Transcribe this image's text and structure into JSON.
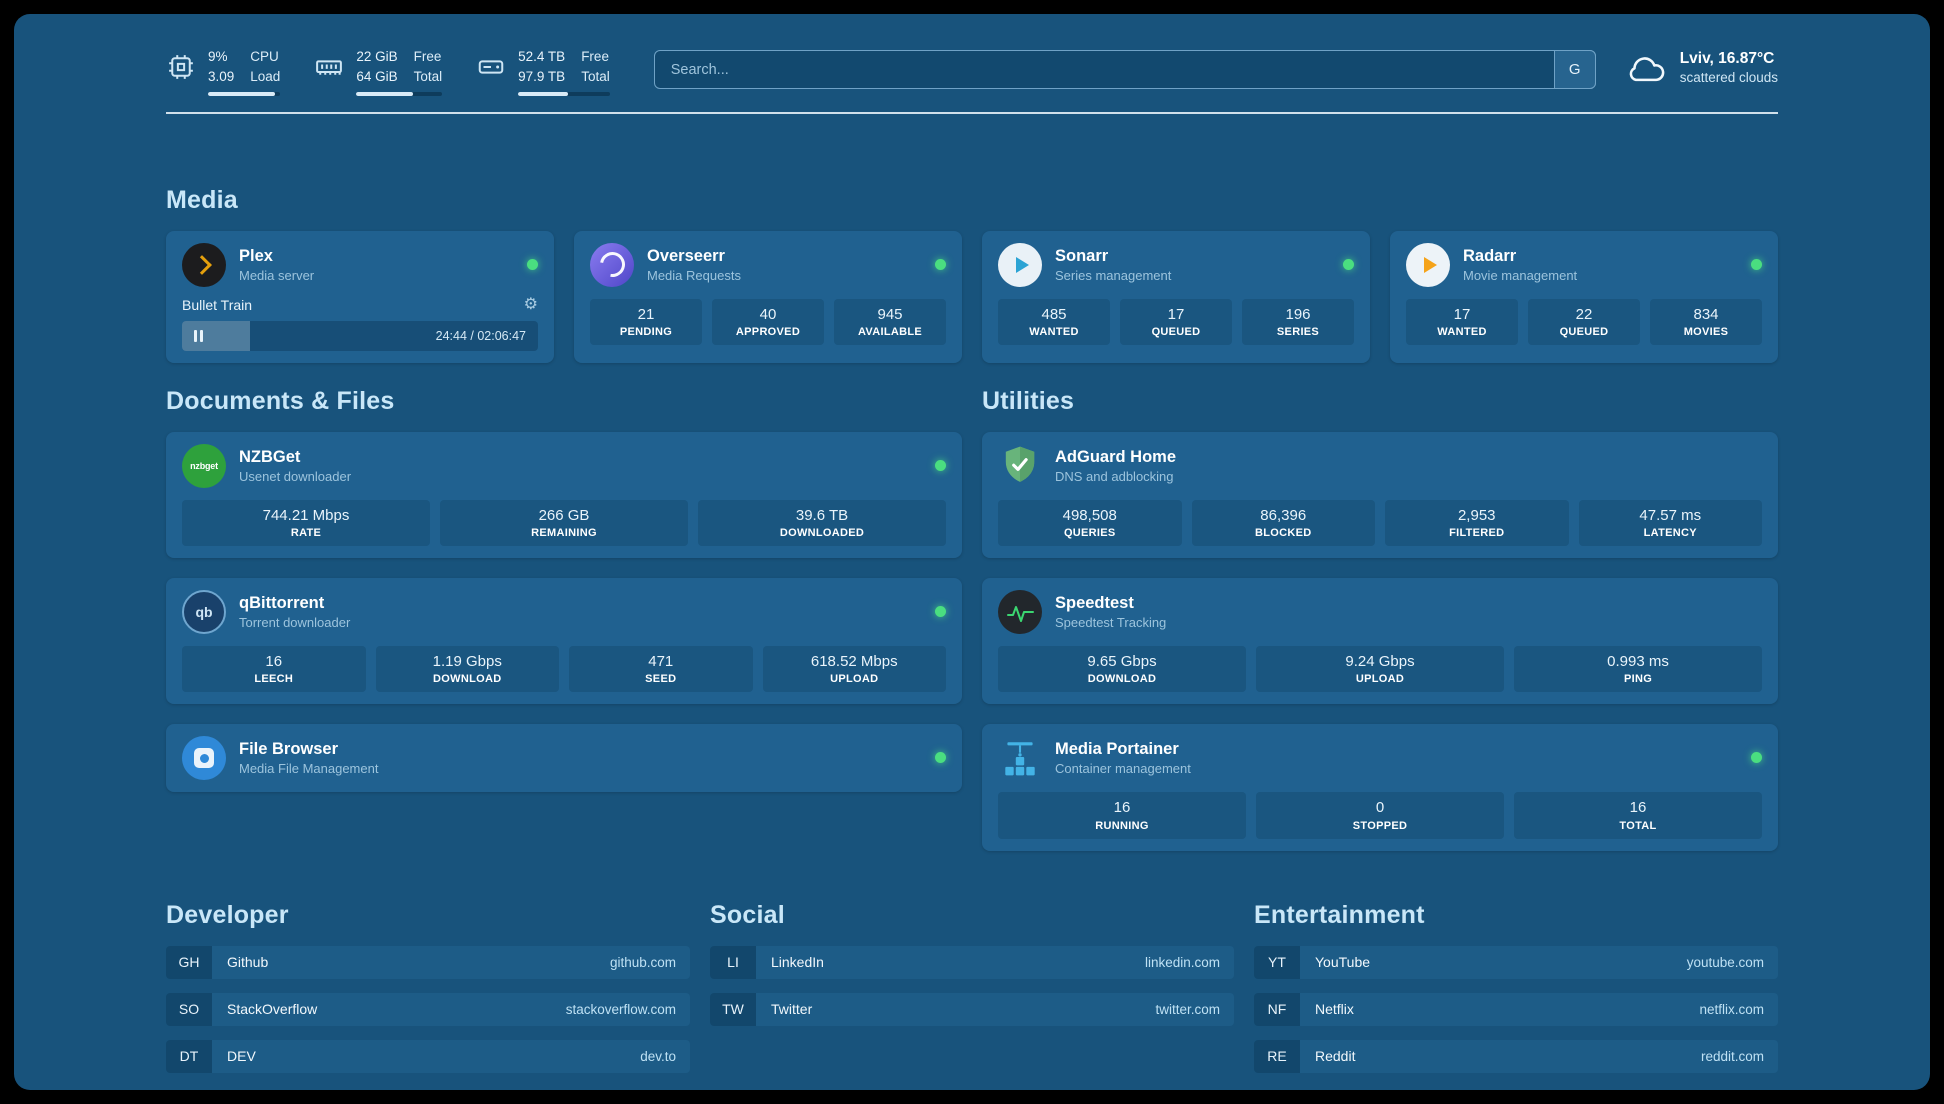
{
  "colors": {
    "panel_background": "#18537c",
    "card_background": "#206190",
    "status_online_green": "#4ade80",
    "heading_blue": "#c9e7f8",
    "plex_amber": "#e5a00d",
    "adguard_green": "#68b47b",
    "speedtest_green": "#3bd671",
    "portainer_blue": "#43b3e6"
  },
  "topbar": {
    "cpu": {
      "value1": "9%",
      "label1": "CPU",
      "value2": "3.09",
      "label2": "Load",
      "fill_percent": 92
    },
    "memory": {
      "value1": "22 GiB",
      "label1": "Free",
      "value2": "64 GiB",
      "label2": "Total",
      "fill_percent": 66
    },
    "disk": {
      "value1": "52.4 TB",
      "label1": "Free",
      "value2": "97.9 TB",
      "label2": "Total",
      "fill_percent": 54
    },
    "search": {
      "placeholder": "Search...",
      "button_label": "G"
    },
    "weather": {
      "location": "Lviv, 16.87°C",
      "condition": "scattered clouds"
    }
  },
  "sections": {
    "media": "Media",
    "documents": "Documents & Files",
    "utilities": "Utilities",
    "developer": "Developer",
    "social": "Social",
    "entertainment": "Entertainment"
  },
  "services": {
    "plex": {
      "name": "Plex",
      "subtitle": "Media server",
      "now_playing": "Bullet Train",
      "time": "24:44 / 02:06:47",
      "progress_percent": 19
    },
    "overseerr": {
      "name": "Overseerr",
      "subtitle": "Media Requests",
      "stats": [
        {
          "value": "21",
          "label": "PENDING"
        },
        {
          "value": "40",
          "label": "APPROVED"
        },
        {
          "value": "945",
          "label": "AVAILABLE"
        }
      ]
    },
    "sonarr": {
      "name": "Sonarr",
      "subtitle": "Series management",
      "stats": [
        {
          "value": "485",
          "label": "WANTED"
        },
        {
          "value": "17",
          "label": "QUEUED"
        },
        {
          "value": "196",
          "label": "SERIES"
        }
      ]
    },
    "radarr": {
      "name": "Radarr",
      "subtitle": "Movie management",
      "stats": [
        {
          "value": "17",
          "label": "WANTED"
        },
        {
          "value": "22",
          "label": "QUEUED"
        },
        {
          "value": "834",
          "label": "MOVIES"
        }
      ]
    },
    "nzbget": {
      "name": "NZBGet",
      "subtitle": "Usenet downloader",
      "glyph": "nzbget",
      "stats": [
        {
          "value": "744.21 Mbps",
          "label": "RATE"
        },
        {
          "value": "266 GB",
          "label": "REMAINING"
        },
        {
          "value": "39.6 TB",
          "label": "DOWNLOADED"
        }
      ]
    },
    "qbittorrent": {
      "name": "qBittorrent",
      "subtitle": "Torrent downloader",
      "glyph": "qb",
      "stats": [
        {
          "value": "16",
          "label": "LEECH"
        },
        {
          "value": "1.19 Gbps",
          "label": "DOWNLOAD"
        },
        {
          "value": "471",
          "label": "SEED"
        },
        {
          "value": "618.52 Mbps",
          "label": "UPLOAD"
        }
      ]
    },
    "filebrowser": {
      "name": "File Browser",
      "subtitle": "Media File Management"
    },
    "adguard": {
      "name": "AdGuard Home",
      "subtitle": "DNS and adblocking",
      "stats": [
        {
          "value": "498,508",
          "label": "QUERIES"
        },
        {
          "value": "86,396",
          "label": "BLOCKED"
        },
        {
          "value": "2,953",
          "label": "FILTERED"
        },
        {
          "value": "47.57 ms",
          "label": "LATENCY"
        }
      ]
    },
    "speedtest": {
      "name": "Speedtest",
      "subtitle": "Speedtest Tracking",
      "stats": [
        {
          "value": "9.65 Gbps",
          "label": "DOWNLOAD"
        },
        {
          "value": "9.24 Gbps",
          "label": "UPLOAD"
        },
        {
          "value": "0.993 ms",
          "label": "PING"
        }
      ]
    },
    "portainer": {
      "name": "Media Portainer",
      "subtitle": "Container management",
      "stats": [
        {
          "value": "16",
          "label": "RUNNING"
        },
        {
          "value": "0",
          "label": "STOPPED"
        },
        {
          "value": "16",
          "label": "TOTAL"
        }
      ]
    }
  },
  "links": {
    "developer": {
      "items": [
        {
          "abbr": "GH",
          "name": "Github",
          "domain": "github.com"
        },
        {
          "abbr": "SO",
          "name": "StackOverflow",
          "domain": "stackoverflow.com"
        },
        {
          "abbr": "DT",
          "name": "DEV",
          "domain": "dev.to"
        }
      ]
    },
    "social": {
      "items": [
        {
          "abbr": "LI",
          "name": "LinkedIn",
          "domain": "linkedin.com"
        },
        {
          "abbr": "TW",
          "name": "Twitter",
          "domain": "twitter.com"
        }
      ]
    },
    "entertainment": {
      "items": [
        {
          "abbr": "YT",
          "name": "YouTube",
          "domain": "youtube.com"
        },
        {
          "abbr": "NF",
          "name": "Netflix",
          "domain": "netflix.com"
        },
        {
          "abbr": "RE",
          "name": "Reddit",
          "domain": "reddit.com"
        }
      ]
    }
  }
}
